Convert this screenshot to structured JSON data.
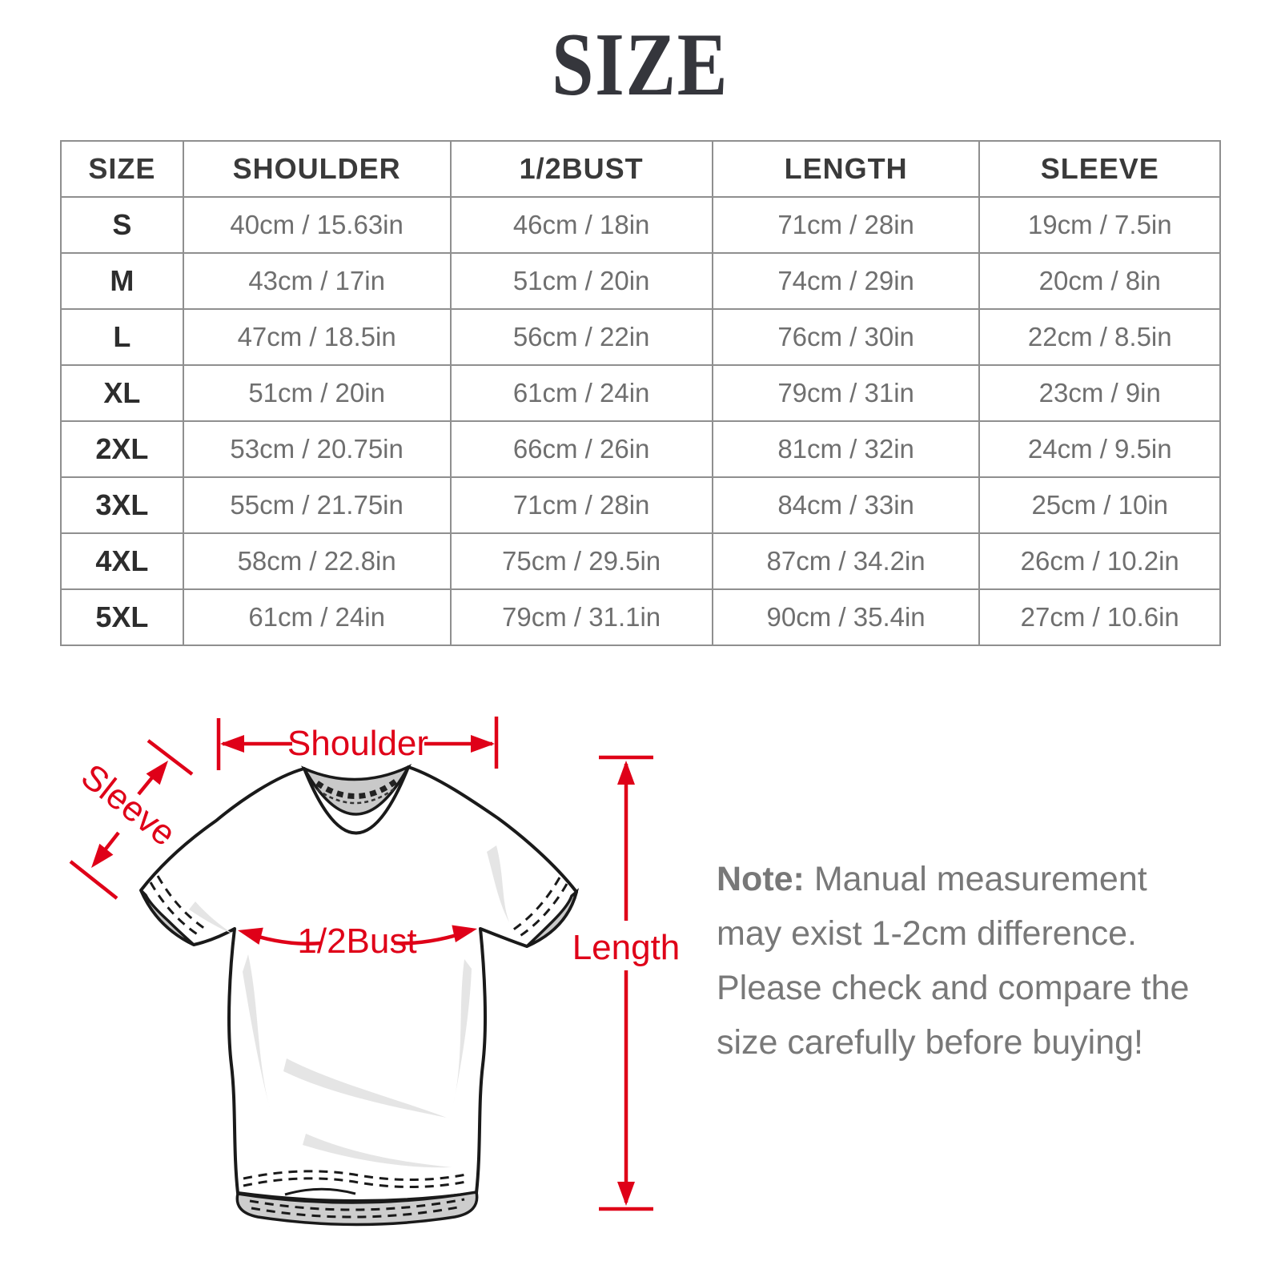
{
  "page": {
    "title": "SIZE"
  },
  "size_table": {
    "headers": [
      "SIZE",
      "SHOULDER",
      "1/2BUST",
      "LENGTH",
      "SLEEVE"
    ],
    "rows": [
      {
        "size": "S",
        "shoulder": "40cm / 15.63in",
        "half_bust": "46cm / 18in",
        "length": "71cm / 28in",
        "sleeve": "19cm / 7.5in"
      },
      {
        "size": "M",
        "shoulder": "43cm / 17in",
        "half_bust": "51cm / 20in",
        "length": "74cm / 29in",
        "sleeve": "20cm / 8in"
      },
      {
        "size": "L",
        "shoulder": "47cm / 18.5in",
        "half_bust": "56cm / 22in",
        "length": "76cm / 30in",
        "sleeve": "22cm / 8.5in"
      },
      {
        "size": "XL",
        "shoulder": "51cm / 20in",
        "half_bust": "61cm / 24in",
        "length": "79cm / 31in",
        "sleeve": "23cm / 9in"
      },
      {
        "size": "2XL",
        "shoulder": "53cm / 20.75in",
        "half_bust": "66cm / 26in",
        "length": "81cm / 32in",
        "sleeve": "24cm / 9.5in"
      },
      {
        "size": "3XL",
        "shoulder": "55cm / 21.75in",
        "half_bust": "71cm / 28in",
        "length": "84cm / 33in",
        "sleeve": "25cm / 10in"
      },
      {
        "size": "4XL",
        "shoulder": "58cm / 22.8in",
        "half_bust": "75cm / 29.5in",
        "length": "87cm / 34.2in",
        "sleeve": "26cm / 10.2in"
      },
      {
        "size": "5XL",
        "shoulder": "61cm / 24in",
        "half_bust": "79cm / 31.1in",
        "length": "90cm / 35.4in",
        "sleeve": "27cm / 10.6in"
      }
    ]
  },
  "diagram": {
    "labels": {
      "shoulder": "Shoulder",
      "sleeve": "Sleeve",
      "half_bust": "1/2Bust",
      "length": "Length"
    },
    "accent_color": "#df0018"
  },
  "note": {
    "prefix": "Note:",
    "body": " Manual measurement may exist 1-2cm difference. Please check and compare the size carefully before buying!"
  }
}
